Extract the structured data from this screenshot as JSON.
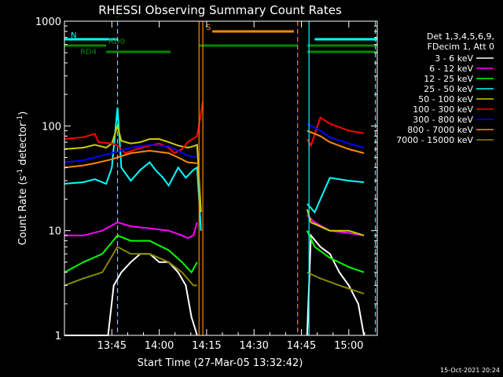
{
  "chart_data": {
    "type": "line",
    "title": "RHESSI Observing Summary Count Rates",
    "xlabel": "Start Time (27-Mar-05 13:32:42)",
    "ylabel_main": "Count Rate (s",
    "ylabel_sup1": "-1",
    "ylabel_mid": " detector",
    "ylabel_sup2": "-1",
    "ylabel_end": ")",
    "y_scale": "log",
    "ylim": [
      1,
      1000
    ],
    "xlim_minutes": [
      13.5,
      15.15
    ],
    "x_ticks": [
      {
        "t": 13.75,
        "label": "13:45"
      },
      {
        "t": 14.0,
        "label": "14:00"
      },
      {
        "t": 14.25,
        "label": "14:15"
      },
      {
        "t": 14.5,
        "label": "14:30"
      },
      {
        "t": 14.75,
        "label": "14:45"
      },
      {
        "t": 15.0,
        "label": "15:00"
      }
    ],
    "y_ticks": [
      {
        "v": 1,
        "label": "1"
      },
      {
        "v": 10,
        "label": "10"
      },
      {
        "v": 100,
        "label": "100"
      },
      {
        "v": 1000,
        "label": "1000"
      }
    ],
    "legend": {
      "header": [
        "Det 1,3,4,5,6,9,",
        "FDecim 1, Att 0"
      ],
      "placement": "right"
    },
    "series": [
      {
        "name": "3 - 6 keV",
        "color": "#ffffff",
        "points": [
          [
            13.5,
            1
          ],
          [
            13.73,
            1
          ],
          [
            13.76,
            3
          ],
          [
            13.8,
            4
          ],
          [
            13.85,
            5
          ],
          [
            13.9,
            6
          ],
          [
            13.95,
            6
          ],
          [
            14.0,
            5
          ],
          [
            14.05,
            5
          ],
          [
            14.1,
            4
          ],
          [
            14.14,
            3
          ],
          [
            14.17,
            1.5
          ],
          [
            14.2,
            1
          ],
          [
            14.78,
            1
          ],
          [
            14.8,
            9
          ],
          [
            14.85,
            7
          ],
          [
            14.9,
            6
          ],
          [
            14.95,
            4
          ],
          [
            15.0,
            3
          ],
          [
            15.05,
            2
          ],
          [
            15.08,
            1
          ]
        ]
      },
      {
        "name": "6 - 12 keV",
        "color": "#ff00ff",
        "points": [
          [
            13.5,
            9
          ],
          [
            13.6,
            9
          ],
          [
            13.7,
            10
          ],
          [
            13.78,
            12
          ],
          [
            13.85,
            11
          ],
          [
            13.95,
            10.5
          ],
          [
            14.05,
            10
          ],
          [
            14.12,
            9
          ],
          [
            14.15,
            8.5
          ],
          [
            14.18,
            9
          ],
          [
            14.2,
            12
          ],
          [
            14.78,
            14
          ],
          [
            14.82,
            12
          ],
          [
            14.9,
            10
          ],
          [
            15.0,
            9.5
          ],
          [
            15.08,
            9
          ]
        ]
      },
      {
        "name": "12 - 25 keV",
        "color": "#00ff00",
        "points": [
          [
            13.5,
            4
          ],
          [
            13.6,
            5
          ],
          [
            13.7,
            6
          ],
          [
            13.78,
            9
          ],
          [
            13.85,
            8
          ],
          [
            13.95,
            8
          ],
          [
            14.05,
            6.5
          ],
          [
            14.12,
            5
          ],
          [
            14.17,
            4
          ],
          [
            14.2,
            5
          ],
          [
            14.78,
            10
          ],
          [
            14.82,
            7
          ],
          [
            14.9,
            5.5
          ],
          [
            15.0,
            4.5
          ],
          [
            15.08,
            4
          ]
        ]
      },
      {
        "name": "25 - 50 keV",
        "color": "#00ffff",
        "points": [
          [
            13.5,
            28
          ],
          [
            13.6,
            29
          ],
          [
            13.66,
            31
          ],
          [
            13.72,
            28
          ],
          [
            13.75,
            40
          ],
          [
            13.78,
            150
          ],
          [
            13.8,
            40
          ],
          [
            13.85,
            30
          ],
          [
            13.9,
            38
          ],
          [
            13.95,
            45
          ],
          [
            13.98,
            38
          ],
          [
            14.02,
            32
          ],
          [
            14.05,
            27
          ],
          [
            14.1,
            40
          ],
          [
            14.14,
            32
          ],
          [
            14.18,
            38
          ],
          [
            14.2,
            40
          ],
          [
            14.22,
            10
          ],
          [
            14.78,
            18
          ],
          [
            14.82,
            15
          ],
          [
            14.9,
            32
          ],
          [
            15.0,
            30
          ],
          [
            15.08,
            29
          ]
        ]
      },
      {
        "name": "50 - 100 keV",
        "color": "#cccc00",
        "points": [
          [
            13.5,
            60
          ],
          [
            13.6,
            62
          ],
          [
            13.66,
            66
          ],
          [
            13.72,
            62
          ],
          [
            13.75,
            68
          ],
          [
            13.78,
            100
          ],
          [
            13.8,
            72
          ],
          [
            13.85,
            68
          ],
          [
            13.9,
            70
          ],
          [
            13.95,
            75
          ],
          [
            14.0,
            75
          ],
          [
            14.05,
            70
          ],
          [
            14.1,
            65
          ],
          [
            14.15,
            62
          ],
          [
            14.18,
            64
          ],
          [
            14.2,
            66
          ],
          [
            14.22,
            15
          ],
          [
            14.78,
            16
          ],
          [
            14.8,
            12
          ],
          [
            14.9,
            10
          ],
          [
            15.0,
            10
          ],
          [
            15.08,
            9
          ]
        ]
      },
      {
        "name": "100 - 300 keV",
        "color": "#ff0000",
        "points": [
          [
            13.5,
            75
          ],
          [
            13.6,
            78
          ],
          [
            13.66,
            84
          ],
          [
            13.68,
            70
          ],
          [
            13.75,
            68
          ],
          [
            13.78,
            65
          ],
          [
            13.82,
            55
          ],
          [
            13.88,
            60
          ],
          [
            13.95,
            65
          ],
          [
            14.0,
            68
          ],
          [
            14.05,
            62
          ],
          [
            14.08,
            55
          ],
          [
            14.12,
            60
          ],
          [
            14.15,
            70
          ],
          [
            14.2,
            80
          ],
          [
            14.23,
            170
          ],
          [
            14.78,
            75
          ],
          [
            14.8,
            65
          ],
          [
            14.85,
            120
          ],
          [
            14.9,
            105
          ],
          [
            15.0,
            90
          ],
          [
            15.08,
            85
          ]
        ]
      },
      {
        "name": "300 - 800 keV",
        "color": "#0000ff",
        "points": [
          [
            13.5,
            45
          ],
          [
            13.6,
            47
          ],
          [
            13.66,
            50
          ],
          [
            13.75,
            55
          ],
          [
            13.85,
            62
          ],
          [
            13.95,
            66
          ],
          [
            14.05,
            64
          ],
          [
            14.1,
            58
          ],
          [
            14.15,
            52
          ],
          [
            14.2,
            50
          ],
          [
            14.78,
            105
          ],
          [
            14.85,
            90
          ],
          [
            14.9,
            78
          ],
          [
            15.0,
            68
          ],
          [
            15.08,
            62
          ]
        ]
      },
      {
        "name": "800 - 7000 keV",
        "color": "#ff8800",
        "points": [
          [
            13.5,
            40
          ],
          [
            13.6,
            42
          ],
          [
            13.66,
            44
          ],
          [
            13.75,
            48
          ],
          [
            13.85,
            55
          ],
          [
            13.95,
            58
          ],
          [
            14.05,
            55
          ],
          [
            14.1,
            50
          ],
          [
            14.15,
            45
          ],
          [
            14.2,
            44
          ],
          [
            14.78,
            90
          ],
          [
            14.85,
            80
          ],
          [
            14.9,
            70
          ],
          [
            15.0,
            60
          ],
          [
            15.08,
            55
          ]
        ]
      },
      {
        "name": "7000 - 15000 keV",
        "color": "#888800",
        "points": [
          [
            13.5,
            3
          ],
          [
            13.6,
            3.5
          ],
          [
            13.7,
            4
          ],
          [
            13.78,
            7
          ],
          [
            13.85,
            6
          ],
          [
            13.95,
            6
          ],
          [
            14.05,
            5
          ],
          [
            14.12,
            4
          ],
          [
            14.18,
            3
          ],
          [
            14.2,
            3
          ],
          [
            14.78,
            4
          ],
          [
            14.85,
            3.5
          ],
          [
            14.95,
            3
          ],
          [
            15.08,
            2.5
          ]
        ]
      }
    ],
    "flags": [
      {
        "label": "N",
        "color": "#00ffff",
        "y": 50,
        "segments": [
          [
            13.5,
            13.78
          ],
          [
            14.82,
            15.15
          ]
        ]
      },
      {
        "label": "S",
        "color": "#ff8800",
        "y": 40,
        "segments": [
          [
            14.28,
            14.71
          ]
        ]
      },
      {
        "label": "RD0",
        "color": "#008800",
        "y": 58,
        "segments": [
          [
            13.5,
            13.72
          ],
          [
            14.21,
            14.73
          ],
          [
            14.78,
            15.15
          ]
        ]
      },
      {
        "label": "RD4",
        "color": "#008800",
        "y": 66,
        "segments": [
          [
            13.72,
            14.06
          ],
          [
            14.78,
            15.15
          ]
        ]
      }
    ],
    "vlines": [
      {
        "t": 13.78,
        "color": "#00ffff",
        "dash": true
      },
      {
        "t": 14.21,
        "color": "#ff8800",
        "dash": false
      },
      {
        "t": 14.23,
        "color": "#ff8800",
        "dash": false
      },
      {
        "t": 14.73,
        "color": "#ff8800",
        "dash": true
      },
      {
        "t": 14.79,
        "color": "#00ffff",
        "dash": false
      },
      {
        "t": 15.14,
        "color": "#00ffff",
        "dash": true
      }
    ],
    "footer_date": "15-Oct-2021 20:24"
  }
}
